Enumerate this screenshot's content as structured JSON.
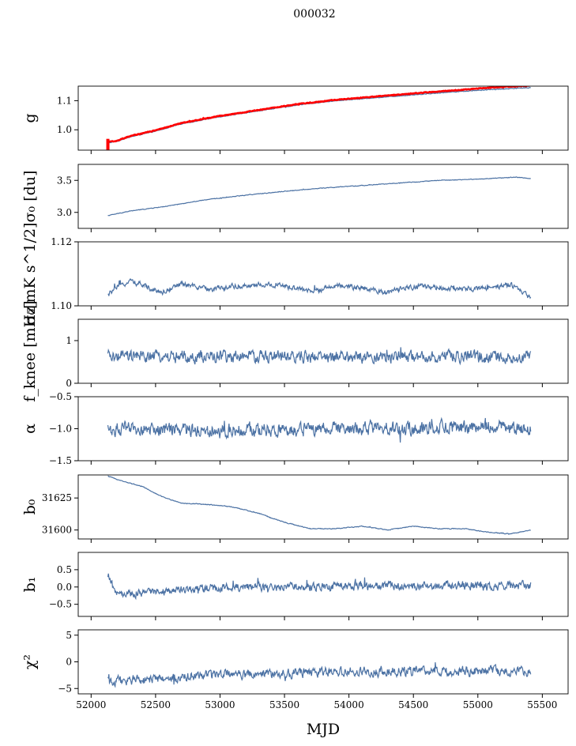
{
  "suptitle": "000032",
  "xlabel": "MJD",
  "colors": {
    "series": "#4c72a4",
    "reference": "#ff0000",
    "axes": "#000000"
  },
  "chart_data": {
    "type": "line",
    "title": "000032",
    "xlabel": "MJD",
    "xlim": [
      51900,
      55700
    ],
    "xticks": [
      52000,
      52500,
      53000,
      53500,
      54000,
      54500,
      55000,
      55500
    ],
    "xtick_labels": [
      "52000",
      "52500",
      "53000",
      "53500",
      "54000",
      "54500",
      "55000",
      "55500"
    ],
    "x_start": 52130,
    "x_end": 55410,
    "grid": false,
    "panels": [
      {
        "id": "g",
        "ylabel": "g",
        "ylim": [
          0.93,
          1.15
        ],
        "yticks": [
          1.0,
          1.1
        ],
        "ytick_labels": [
          "1.0",
          "1.1"
        ],
        "noise": 0.001,
        "series": [
          {
            "color": "blue",
            "x": [
              52130,
              52200,
              52300,
              52500,
              52700,
              53000,
              53300,
              53600,
              53900,
              54200,
              54500,
              54800,
              55100,
              55410
            ],
            "y": [
              0.955,
              0.96,
              0.975,
              0.995,
              1.02,
              1.045,
              1.065,
              1.085,
              1.1,
              1.11,
              1.12,
              1.13,
              1.138,
              1.145
            ]
          },
          {
            "color": "red",
            "x": [
              52130,
              52200,
              52300,
              52500,
              52700,
              53000,
              53300,
              53600,
              53900,
              54200,
              54500,
              54800,
              55100,
              55410
            ],
            "y": [
              0.958,
              0.962,
              0.978,
              0.998,
              1.023,
              1.048,
              1.068,
              1.088,
              1.103,
              1.114,
              1.125,
              1.135,
              1.145,
              1.152
            ],
            "offset_note": ""
          }
        ]
      },
      {
        "id": "sigma0_du",
        "ylabel": "σ₀ [du]",
        "ylim": [
          2.75,
          3.75
        ],
        "yticks": [
          3.0,
          3.5
        ],
        "ytick_labels": [
          "3.0",
          "3.5"
        ],
        "noise": 0.004,
        "series": [
          {
            "color": "blue",
            "x": [
              52130,
              52300,
              52600,
              52900,
              53200,
              53500,
              53800,
              54100,
              54400,
              54700,
              55000,
              55300,
              55410
            ],
            "y": [
              2.95,
              3.02,
              3.1,
              3.2,
              3.27,
              3.33,
              3.38,
              3.42,
              3.46,
              3.5,
              3.52,
              3.55,
              3.53
            ]
          }
        ]
      },
      {
        "id": "sigma0_mk",
        "ylabel": "σ₀[mK s^1/2]",
        "ylim": [
          1.1,
          1.12
        ],
        "yticks": [
          1.1,
          1.12
        ],
        "ytick_labels": [
          "1.10",
          "1.12"
        ],
        "noise": 0.0007,
        "series": [
          {
            "color": "blue",
            "x": [
              52130,
              52180,
              52300,
              52450,
              52550,
              52700,
              52900,
              53100,
              53300,
              53500,
              53700,
              53900,
              54100,
              54300,
              54500,
              54700,
              54900,
              55100,
              55250,
              55410
            ],
            "y": [
              1.1032,
              1.1052,
              1.1078,
              1.1058,
              1.1042,
              1.1068,
              1.1052,
              1.106,
              1.1066,
              1.1062,
              1.1045,
              1.1062,
              1.1055,
              1.1042,
              1.106,
              1.1056,
              1.1052,
              1.1058,
              1.1066,
              1.1025
            ]
          }
        ]
      },
      {
        "id": "fknee",
        "ylabel": "f_knee [mHz]",
        "ylim": [
          0,
          1.5
        ],
        "yticks": [
          0,
          1
        ],
        "ytick_labels": [
          "0",
          "1"
        ],
        "noise": 0.12,
        "series": [
          {
            "color": "blue",
            "x": [
              52130,
              53000,
              54000,
              55000,
              55410
            ],
            "y": [
              0.62,
              0.63,
              0.61,
              0.62,
              0.6
            ]
          }
        ]
      },
      {
        "id": "alpha",
        "ylabel": "α",
        "ylim": [
          -1.5,
          -0.5
        ],
        "yticks": [
          -1.5,
          -1.0,
          -0.5
        ],
        "ytick_labels": [
          "−1.5",
          "−1.0",
          "−0.5"
        ],
        "noise": 0.09,
        "series": [
          {
            "color": "blue",
            "x": [
              52130,
              53000,
              54000,
              55000,
              55410
            ],
            "y": [
              -1.01,
              -1.02,
              -1.0,
              -0.97,
              -0.98
            ]
          }
        ]
      },
      {
        "id": "b0",
        "ylabel": "b₀",
        "ylim": [
          31593,
          31643
        ],
        "yticks": [
          31600,
          31625
        ],
        "ytick_labels": [
          "31600",
          "31625"
        ],
        "noise": 0.25,
        "series": [
          {
            "color": "blue",
            "x": [
              52130,
              52250,
              52400,
              52550,
              52700,
              52900,
              53100,
              53300,
              53500,
              53700,
              53900,
              54100,
              54300,
              54500,
              54700,
              54900,
              55100,
              55250,
              55410
            ],
            "y": [
              31642,
              31638,
              31634,
              31626,
              31621,
              31620,
              31618,
              31613,
              31606,
              31601,
              31601,
              31603,
              31600,
              31603,
              31601,
              31601,
              31598,
              31597,
              31600
            ]
          }
        ]
      },
      {
        "id": "b1",
        "ylabel": "b₁",
        "ylim": [
          -0.85,
          1.0
        ],
        "yticks": [
          -0.5,
          0.0,
          0.5
        ],
        "ytick_labels": [
          "−0.5",
          "0.0",
          "0.5"
        ],
        "noise": 0.1,
        "series": [
          {
            "color": "blue",
            "x": [
              52130,
              52200,
              52400,
              52800,
              53200,
              54000,
              54800,
              55100,
              55410
            ],
            "y": [
              0.3,
              -0.22,
              -0.18,
              -0.05,
              0.0,
              0.02,
              0.05,
              0.02,
              0.05
            ]
          }
        ]
      },
      {
        "id": "chi2",
        "ylabel": "χ²",
        "ylim": [
          -6,
          6
        ],
        "yticks": [
          -5,
          0,
          5
        ],
        "ytick_labels": [
          "−5",
          "0",
          "5"
        ],
        "noise": 0.75,
        "series": [
          {
            "color": "blue",
            "x": [
              52130,
              52400,
              52800,
              53200,
              53600,
              54000,
              54400,
              54800,
              55200,
              55410
            ],
            "y": [
              -3.6,
              -3.4,
              -2.7,
              -2.3,
              -2.0,
              -1.8,
              -1.8,
              -1.7,
              -1.8,
              -1.9
            ]
          }
        ]
      }
    ]
  }
}
